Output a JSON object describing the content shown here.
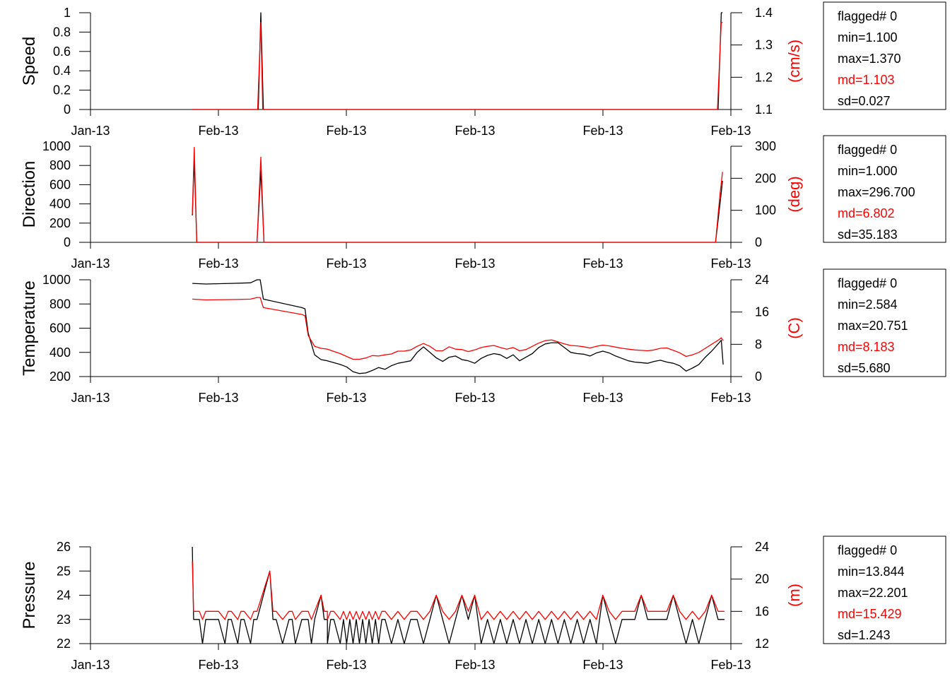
{
  "colors": {
    "primary": "#000000",
    "secondary": "#ff0000"
  },
  "chart_data": [
    {
      "type": "line",
      "ylabel": "Speed",
      "y2label": "(cm/s)",
      "xtick_labels": [
        "Jan-13",
        "Feb-13",
        "Feb-13",
        "Feb-13",
        "Feb-13",
        "Feb-13"
      ],
      "xlim": [
        0,
        1
      ],
      "ylim": [
        0,
        1
      ],
      "yticks": [
        "0",
        "0.2",
        "0.4",
        "0.6",
        "0.8",
        "1"
      ],
      "y2lim": [
        1.1,
        1.4
      ],
      "y2ticks": [
        "1.1",
        "1.2",
        "1.3",
        "1.4"
      ],
      "series": [
        {
          "axis": "left",
          "color": "#000000",
          "x": [
            0.159,
            0.262,
            0.266,
            0.27,
            0.98,
            0.985,
            0.987
          ],
          "y": [
            0,
            0,
            1,
            0,
            0,
            1,
            1
          ]
        },
        {
          "axis": "right",
          "color": "#ff0000",
          "x": [
            0.159,
            0.261,
            0.266,
            0.269,
            0.979,
            0.985,
            0.987
          ],
          "y": [
            1.1,
            1.1,
            1.37,
            1.1,
            1.1,
            1.37,
            1.37
          ]
        }
      ],
      "stats": {
        "flagged": "flagged# 0",
        "min": "min=1.100",
        "max": "max=1.370",
        "md": "md=1.103",
        "sd": "sd=0.027"
      }
    },
    {
      "type": "line",
      "ylabel": "Direction",
      "y2label": "(deg)",
      "xtick_labels": [
        "Jan-13",
        "Feb-13",
        "Feb-13",
        "Feb-13",
        "Feb-13",
        "Feb-13"
      ],
      "xlim": [
        0,
        1
      ],
      "ylim": [
        0,
        1000
      ],
      "yticks": [
        "0",
        "200",
        "400",
        "600",
        "800",
        "1000"
      ],
      "y2lim": [
        0,
        300
      ],
      "y2ticks": [
        "0",
        "100",
        "200",
        "300"
      ],
      "series": [
        {
          "axis": "left",
          "color": "#000000",
          "x": [
            0.159,
            0.162,
            0.166,
            0.26,
            0.266,
            0.271,
            0.976,
            0.983,
            0.987
          ],
          "y": [
            280,
            860,
            0,
            0,
            750,
            0,
            0,
            400,
            640
          ]
        },
        {
          "axis": "right",
          "color": "#ff0000",
          "x": [
            0.159,
            0.162,
            0.166,
            0.26,
            0.266,
            0.271,
            0.976,
            0.983,
            0.987
          ],
          "y": [
            88,
            296.7,
            0,
            0,
            266,
            0,
            0,
            150,
            220
          ]
        }
      ],
      "stats": {
        "flagged": "flagged# 0",
        "min": "min=1.000",
        "max": "max=296.700",
        "md": "md=6.802",
        "sd": "sd=35.183"
      }
    },
    {
      "type": "line",
      "ylabel": "Temperature",
      "y2label": "(C)",
      "xtick_labels": [
        "Jan-13",
        "Feb-13",
        "Feb-13",
        "Feb-13",
        "Feb-13",
        "Feb-13"
      ],
      "xlim": [
        0,
        1
      ],
      "ylim": [
        200,
        1000
      ],
      "yticks": [
        "200",
        "400",
        "600",
        "800",
        "1000"
      ],
      "y2lim": [
        0,
        24
      ],
      "y2ticks": [
        "0",
        "8",
        "16",
        "24"
      ],
      "series": [
        {
          "axis": "left",
          "color": "#000000",
          "x": [
            0.159,
            0.18,
            0.22,
            0.25,
            0.26,
            0.265,
            0.27,
            0.33,
            0.335,
            0.34,
            0.35,
            0.36,
            0.37,
            0.39,
            0.4,
            0.41,
            0.42,
            0.43,
            0.44,
            0.45,
            0.46,
            0.47,
            0.48,
            0.49,
            0.5,
            0.51,
            0.52,
            0.53,
            0.54,
            0.55,
            0.56,
            0.57,
            0.58,
            0.59,
            0.6,
            0.61,
            0.62,
            0.63,
            0.64,
            0.65,
            0.66,
            0.67,
            0.68,
            0.69,
            0.7,
            0.71,
            0.72,
            0.73,
            0.74,
            0.75,
            0.76,
            0.77,
            0.78,
            0.79,
            0.8,
            0.81,
            0.82,
            0.83,
            0.84,
            0.85,
            0.86,
            0.87,
            0.88,
            0.89,
            0.9,
            0.91,
            0.92,
            0.93,
            0.94,
            0.95,
            0.96,
            0.97,
            0.98,
            0.985,
            0.988
          ],
          "y": [
            970,
            965,
            970,
            975,
            1000,
            1000,
            840,
            770,
            760,
            560,
            380,
            340,
            330,
            300,
            280,
            240,
            225,
            230,
            250,
            275,
            260,
            290,
            310,
            320,
            330,
            400,
            445,
            400,
            355,
            325,
            360,
            370,
            340,
            330,
            310,
            350,
            375,
            390,
            380,
            350,
            380,
            330,
            360,
            390,
            440,
            470,
            480,
            480,
            440,
            400,
            390,
            385,
            370,
            395,
            410,
            395,
            370,
            350,
            330,
            320,
            315,
            310,
            325,
            335,
            320,
            310,
            290,
            245,
            270,
            300,
            360,
            410,
            470,
            500,
            300
          ]
        },
        {
          "axis": "right",
          "color": "#ff0000",
          "x": [
            0.159,
            0.18,
            0.22,
            0.25,
            0.26,
            0.265,
            0.27,
            0.33,
            0.335,
            0.34,
            0.35,
            0.36,
            0.37,
            0.39,
            0.4,
            0.41,
            0.42,
            0.43,
            0.44,
            0.45,
            0.46,
            0.47,
            0.48,
            0.49,
            0.5,
            0.51,
            0.52,
            0.53,
            0.54,
            0.55,
            0.56,
            0.57,
            0.58,
            0.59,
            0.6,
            0.61,
            0.62,
            0.63,
            0.64,
            0.65,
            0.66,
            0.67,
            0.68,
            0.69,
            0.7,
            0.71,
            0.72,
            0.73,
            0.74,
            0.75,
            0.76,
            0.77,
            0.78,
            0.79,
            0.8,
            0.81,
            0.82,
            0.83,
            0.84,
            0.85,
            0.86,
            0.87,
            0.88,
            0.89,
            0.9,
            0.91,
            0.92,
            0.93,
            0.94,
            0.95,
            0.96,
            0.97,
            0.98,
            0.985,
            0.988
          ],
          "y": [
            19.2,
            19,
            19.1,
            19.2,
            19.6,
            19.6,
            17.1,
            15.4,
            15.1,
            10.2,
            7.5,
            7,
            6.8,
            5.7,
            5,
            4.3,
            4.3,
            4.6,
            5.2,
            5.1,
            5.4,
            5.6,
            6.3,
            6.3,
            6.6,
            7.5,
            8.2,
            7.5,
            6.4,
            6.4,
            7.4,
            6.8,
            6.7,
            6.2,
            6.6,
            7.2,
            7.5,
            7.7,
            7.2,
            6.8,
            7.2,
            6.4,
            6.7,
            7.5,
            8.3,
            8.9,
            9.1,
            8.6,
            8.1,
            7.7,
            7.6,
            7.4,
            7.1,
            7.5,
            7.8,
            7.6,
            7.3,
            7.0,
            6.8,
            6.6,
            6.5,
            6.4,
            6.6,
            7.0,
            7.1,
            6.5,
            5.9,
            5.0,
            5.4,
            6.0,
            7.0,
            8.0,
            9.0,
            9.6,
            8.9
          ]
        }
      ],
      "stats": {
        "flagged": "flagged# 0",
        "min": "min=2.584",
        "max": "max=20.751",
        "md": "md=8.183",
        "sd": "sd=5.680"
      }
    },
    {
      "type": "line",
      "ylabel": "Pressure",
      "y2label": "(m)",
      "xtick_labels": [
        "Jan-13",
        "Feb-13",
        "Feb-13",
        "Feb-13",
        "Feb-13",
        "Feb-13"
      ],
      "xlim": [
        0,
        1
      ],
      "ylim": [
        22,
        26
      ],
      "yticks": [
        "22",
        "23",
        "24",
        "25",
        "26"
      ],
      "y2lim": [
        12,
        24
      ],
      "y2ticks": [
        "12",
        "16",
        "20",
        "24"
      ],
      "series": [
        {
          "axis": "left",
          "color": "#000000",
          "x": [
            0.159,
            0.161,
            0.17,
            0.175,
            0.18,
            0.2,
            0.21,
            0.215,
            0.22,
            0.23,
            0.235,
            0.24,
            0.25,
            0.255,
            0.26,
            0.28,
            0.285,
            0.29,
            0.3,
            0.31,
            0.315,
            0.32,
            0.33,
            0.34,
            0.345,
            0.35,
            0.36,
            0.365,
            0.37,
            0.37,
            0.375,
            0.38,
            0.39,
            0.395,
            0.4,
            0.405,
            0.41,
            0.415,
            0.42,
            0.425,
            0.43,
            0.435,
            0.44,
            0.445,
            0.45,
            0.455,
            0.46,
            0.47,
            0.48,
            0.49,
            0.5,
            0.51,
            0.52,
            0.53,
            0.54,
            0.55,
            0.56,
            0.57,
            0.58,
            0.59,
            0.6,
            0.61,
            0.62,
            0.63,
            0.64,
            0.65,
            0.66,
            0.67,
            0.68,
            0.69,
            0.7,
            0.71,
            0.72,
            0.73,
            0.74,
            0.75,
            0.76,
            0.77,
            0.78,
            0.79,
            0.8,
            0.81,
            0.82,
            0.83,
            0.84,
            0.85,
            0.86,
            0.87,
            0.88,
            0.89,
            0.9,
            0.91,
            0.92,
            0.93,
            0.94,
            0.95,
            0.96,
            0.97,
            0.98,
            0.985,
            0.99
          ],
          "y": [
            26,
            23,
            23,
            22,
            23,
            23,
            22,
            23,
            23,
            22,
            23,
            23,
            22,
            23,
            23,
            25,
            23,
            23,
            22,
            23,
            23,
            22,
            23,
            23,
            22,
            23,
            24,
            23,
            23,
            22,
            23,
            23,
            22,
            23,
            22,
            23,
            22,
            23,
            22,
            23,
            22,
            23,
            22,
            23,
            22,
            23,
            23,
            22,
            23,
            22,
            23,
            23,
            22,
            23,
            24,
            23,
            22,
            23,
            24,
            23,
            24,
            22,
            23,
            22,
            23,
            22,
            23,
            22,
            23,
            22,
            23,
            22,
            23,
            22,
            23,
            22,
            23,
            22,
            23,
            22,
            24,
            23,
            22,
            23,
            23,
            23,
            24,
            23,
            23,
            23,
            23,
            24,
            23,
            22,
            23,
            22,
            23,
            24,
            23,
            23,
            23
          ]
        },
        {
          "axis": "right",
          "color": "#ff0000",
          "x": [
            0.159,
            0.161,
            0.17,
            0.175,
            0.18,
            0.2,
            0.21,
            0.215,
            0.22,
            0.23,
            0.235,
            0.24,
            0.25,
            0.255,
            0.26,
            0.28,
            0.285,
            0.29,
            0.3,
            0.31,
            0.315,
            0.32,
            0.33,
            0.34,
            0.345,
            0.35,
            0.36,
            0.365,
            0.37,
            0.37,
            0.375,
            0.38,
            0.39,
            0.395,
            0.4,
            0.405,
            0.41,
            0.415,
            0.42,
            0.425,
            0.43,
            0.435,
            0.44,
            0.445,
            0.45,
            0.455,
            0.46,
            0.47,
            0.48,
            0.49,
            0.5,
            0.51,
            0.52,
            0.53,
            0.54,
            0.55,
            0.56,
            0.57,
            0.58,
            0.59,
            0.6,
            0.61,
            0.62,
            0.63,
            0.64,
            0.65,
            0.66,
            0.67,
            0.68,
            0.69,
            0.7,
            0.71,
            0.72,
            0.73,
            0.74,
            0.75,
            0.76,
            0.77,
            0.78,
            0.79,
            0.8,
            0.81,
            0.82,
            0.83,
            0.84,
            0.85,
            0.86,
            0.87,
            0.88,
            0.89,
            0.9,
            0.91,
            0.92,
            0.93,
            0.94,
            0.95,
            0.96,
            0.97,
            0.98,
            0.985,
            0.99
          ],
          "y": [
            22.2,
            16,
            16,
            15,
            16,
            16,
            15,
            16,
            16,
            15,
            16,
            16,
            15,
            16,
            16,
            21,
            16,
            16,
            15,
            16,
            16,
            15,
            16,
            16,
            15,
            16,
            18,
            16,
            16,
            15,
            16,
            16,
            15,
            16,
            15,
            16,
            15,
            16,
            15,
            16,
            15,
            16,
            15,
            16,
            15,
            16,
            16,
            15,
            16,
            15,
            16,
            16,
            15,
            16,
            18,
            16,
            15,
            16,
            18,
            16,
            18,
            15,
            16,
            15,
            16,
            15,
            16,
            15,
            16,
            15,
            16,
            15,
            16,
            15,
            16,
            15,
            16,
            15,
            16,
            15,
            18,
            16,
            15,
            16,
            16,
            16,
            18,
            16,
            16,
            16,
            16,
            18,
            16,
            15,
            16,
            15,
            16,
            18,
            16,
            16,
            16
          ]
        }
      ],
      "stats": {
        "flagged": "flagged# 0",
        "min": "min=13.844",
        "max": "max=22.201",
        "md": "md=15.429",
        "sd": "sd=1.243"
      }
    }
  ]
}
